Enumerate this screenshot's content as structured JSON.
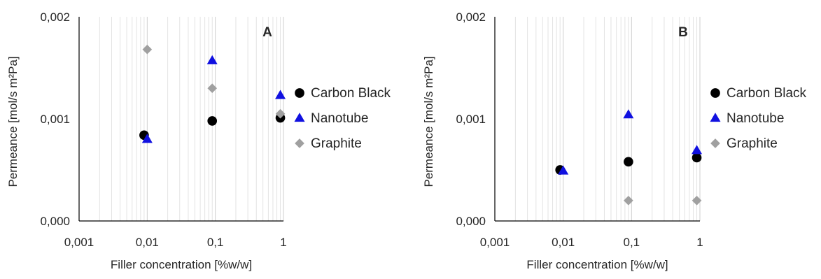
{
  "chart_data": [
    {
      "type": "scatter",
      "panel_label": "A",
      "xlabel": "Filler concentration [%w/w]",
      "ylabel": "Permeance [mol/s m²Pa]",
      "xscale": "log",
      "xlim": [
        0.001,
        1
      ],
      "ylim": [
        0,
        0.002
      ],
      "x_ticks": [
        "0,001",
        "0,01",
        "0,1",
        "1"
      ],
      "y_ticks": [
        "0,000",
        "0,001",
        "0,002"
      ],
      "grid": "vertical minor log gridlines",
      "legend_position": "right",
      "series": [
        {
          "name": "Carbon Black",
          "marker": "circle",
          "color": "#000000",
          "x": [
            0.009,
            0.09,
            0.9
          ],
          "y": [
            0.00084,
            0.00098,
            0.00101
          ]
        },
        {
          "name": "Nanotube",
          "marker": "triangle",
          "color": "#1010e0",
          "x": [
            0.01,
            0.09,
            0.9
          ],
          "y": [
            0.0008,
            0.00157,
            0.00123
          ]
        },
        {
          "name": "Graphite",
          "marker": "diamond",
          "color": "#a0a0a0",
          "x": [
            0.01,
            0.09,
            0.9
          ],
          "y": [
            0.00168,
            0.0013,
            0.00105
          ]
        }
      ]
    },
    {
      "type": "scatter",
      "panel_label": "B",
      "xlabel": "Filler concentration [%w/w]",
      "ylabel": "Permeance [mol/s m²Pa]",
      "xscale": "log",
      "xlim": [
        0.001,
        1
      ],
      "ylim": [
        0,
        0.002
      ],
      "x_ticks": [
        "0,001",
        "0,01",
        "0,1",
        "1"
      ],
      "y_ticks": [
        "0,000",
        "0,001",
        "0,002"
      ],
      "grid": "vertical minor log gridlines",
      "legend_position": "right",
      "series": [
        {
          "name": "Carbon Black",
          "marker": "circle",
          "color": "#000000",
          "x": [
            0.009,
            0.09,
            0.9
          ],
          "y": [
            0.0005,
            0.00058,
            0.00062
          ]
        },
        {
          "name": "Nanotube",
          "marker": "triangle",
          "color": "#1010e0",
          "x": [
            0.01,
            0.09,
            0.9
          ],
          "y": [
            0.00049,
            0.00104,
            0.00069
          ]
        },
        {
          "name": "Graphite",
          "marker": "diamond",
          "color": "#a0a0a0",
          "x": [
            0.09,
            0.9
          ],
          "y": [
            0.0002,
            0.0002
          ]
        }
      ]
    }
  ]
}
